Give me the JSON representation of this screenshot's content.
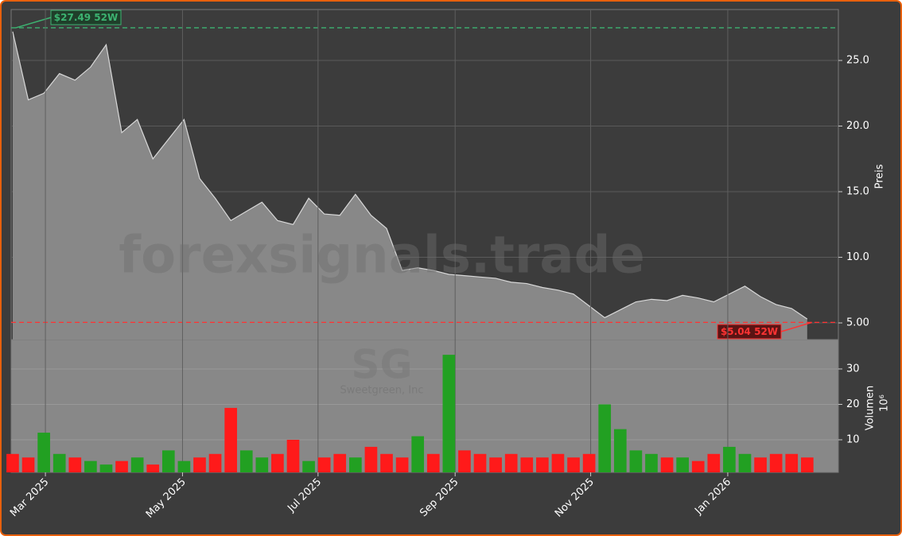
{
  "chart_data": [
    {
      "type": "area",
      "ylabel": "Preis",
      "x": [
        0,
        1,
        2,
        3,
        4,
        5,
        6,
        7,
        8,
        9,
        10,
        11,
        12,
        13,
        14,
        15,
        16,
        17,
        18,
        19,
        20,
        21,
        22,
        23,
        24,
        25,
        26,
        27,
        28,
        29,
        30,
        31,
        32,
        33,
        34,
        35,
        36,
        37,
        38,
        39,
        40,
        41,
        42,
        43,
        44,
        45,
        46,
        47,
        48,
        49,
        50,
        51
      ],
      "values": [
        27.2,
        22,
        22.5,
        24,
        23.5,
        24.5,
        26.2,
        19.5,
        20.5,
        17.5,
        19,
        20.5,
        16,
        14.5,
        12.8,
        13.5,
        14.2,
        12.8,
        12.5,
        14.5,
        13.3,
        13.2,
        14.8,
        13.2,
        12.2,
        9,
        9.2,
        9,
        8.7,
        8.6,
        8.5,
        8.4,
        8.1,
        8,
        7.7,
        7.5,
        7.2,
        6.3,
        5.4,
        6,
        6.6,
        6.8,
        6.7,
        7.1,
        6.9,
        6.6,
        7.2,
        7.8,
        7,
        6.4,
        6.1,
        5.3
      ],
      "color": "#888888",
      "line_color": "#d8d8d8",
      "xlim": [
        -0.1,
        53
      ],
      "ylim": [
        3.73,
        28.88
      ],
      "yticks": [
        {
          "value": 5,
          "label": "5.00"
        },
        {
          "value": 10,
          "label": "10.0"
        },
        {
          "value": 15,
          "label": "15.0"
        },
        {
          "value": 20,
          "label": "20.0"
        },
        {
          "value": 25,
          "label": "25.0"
        }
      ],
      "grid": true,
      "annotations": [
        {
          "label": "$27.49 52W",
          "value": 27.49,
          "color": "#3cb371"
        },
        {
          "label": "$5.04 52W",
          "value": 5.04,
          "color": "#ff3333"
        }
      ],
      "watermark": "forexsignals.trade",
      "ticker": "SG",
      "company": "Sweetgreen, Inc"
    },
    {
      "type": "bar",
      "ylabel": "Volumen",
      "yunit": "10⁶",
      "x": [
        0,
        1,
        2,
        3,
        4,
        5,
        6,
        7,
        8,
        9,
        10,
        11,
        12,
        13,
        14,
        15,
        16,
        17,
        18,
        19,
        20,
        21,
        22,
        23,
        24,
        25,
        26,
        27,
        28,
        29,
        30,
        31,
        32,
        33,
        34,
        35,
        36,
        37,
        38,
        39,
        40,
        41,
        42,
        43,
        44,
        45,
        46,
        47,
        48,
        49,
        50,
        51
      ],
      "values": [
        6,
        5,
        12,
        6,
        5,
        4,
        3,
        4,
        5,
        3,
        7,
        4,
        5,
        6,
        19,
        7,
        5,
        6,
        10,
        4,
        5,
        6,
        5,
        8,
        6,
        5,
        11,
        6,
        34,
        7,
        6,
        5,
        6,
        5,
        5,
        6,
        5,
        6,
        20,
        13,
        7,
        6,
        5,
        5,
        4,
        6,
        8,
        6,
        5,
        6,
        6,
        5
      ],
      "colors": [
        "#ff1a1a",
        "#ff1a1a",
        "#22a022",
        "#22a022",
        "#ff1a1a",
        "#22a022",
        "#22a022",
        "#ff1a1a",
        "#22a022",
        "#ff1a1a",
        "#22a022",
        "#22a022",
        "#ff1a1a",
        "#ff1a1a",
        "#ff1a1a",
        "#22a022",
        "#22a022",
        "#ff1a1a",
        "#ff1a1a",
        "#22a022",
        "#ff1a1a",
        "#ff1a1a",
        "#22a022",
        "#ff1a1a",
        "#ff1a1a",
        "#ff1a1a",
        "#22a022",
        "#ff1a1a",
        "#22a022",
        "#ff1a1a",
        "#ff1a1a",
        "#ff1a1a",
        "#ff1a1a",
        "#ff1a1a",
        "#ff1a1a",
        "#ff1a1a",
        "#ff1a1a",
        "#ff1a1a",
        "#22a022",
        "#22a022",
        "#22a022",
        "#22a022",
        "#ff1a1a",
        "#22a022",
        "#ff1a1a",
        "#ff1a1a",
        "#22a022",
        "#22a022",
        "#ff1a1a",
        "#ff1a1a",
        "#ff1a1a",
        "#ff1a1a"
      ],
      "xlim": [
        -0.1,
        53
      ],
      "ylim": [
        0.79,
        38.3
      ],
      "yticks": [
        10,
        20,
        30
      ],
      "xticks": [
        {
          "value": 2.1,
          "label": "Mar 2025"
        },
        {
          "value": 10.9,
          "label": "May 2025"
        },
        {
          "value": 19.6,
          "label": "Jul 2025"
        },
        {
          "value": 28.4,
          "label": "Sep 2025"
        },
        {
          "value": 37.1,
          "label": "Nov 2025"
        },
        {
          "value": 45.9,
          "label": "Jan 2026"
        }
      ]
    }
  ]
}
